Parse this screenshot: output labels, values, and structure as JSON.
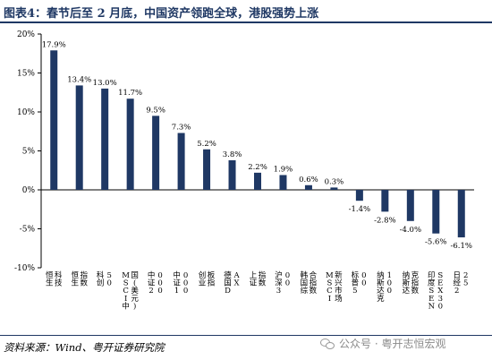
{
  "title": "图表4：春节后至 2 月底，中国资产领跑全球，港股强势上涨",
  "source": "资料来源：Wind、粤开证券研究院",
  "watermark": "公众号 · 粤开志恒宏观",
  "watermark_icon": "wechat-icon",
  "chart_data": {
    "type": "bar",
    "categories": [
      "恒生科技",
      "恒生指数",
      "科创50",
      "MSCI中国(美元)",
      "中证2000",
      "中证1000",
      "创业板指",
      "德国DAX",
      "上证指数",
      "沪深300",
      "韩国综合指数",
      "MSCI新兴市场",
      "标普500",
      "纳斯达克100",
      "纳斯达克指数",
      "印度SENSEX30",
      "日经225"
    ],
    "values": [
      17.9,
      13.4,
      13.0,
      11.7,
      9.5,
      7.3,
      5.2,
      3.8,
      2.2,
      1.9,
      0.6,
      0.3,
      -1.4,
      -2.8,
      -4.0,
      -5.6,
      -6.1
    ],
    "value_labels": [
      "17.9%",
      "13.4%",
      "13.0%",
      "11.7%",
      "9.5%",
      "7.3%",
      "5.2%",
      "3.8%",
      "2.2%",
      "1.9%",
      "0.6%",
      "0.3%",
      "-1.4%",
      "-2.8%",
      "-4.0%",
      "-5.6%",
      "-6.1%"
    ],
    "ylim": [
      -10,
      20
    ],
    "yticks": [
      -10,
      -5,
      0,
      5,
      10,
      15,
      20
    ],
    "ytick_labels": [
      "-10%",
      "-5%",
      "0%",
      "5%",
      "10%",
      "15%",
      "20%"
    ],
    "xlabel": "",
    "ylabel": "",
    "grid": false,
    "legend": "none",
    "bar_color": "#1f3864",
    "axis_color": "#000000"
  }
}
